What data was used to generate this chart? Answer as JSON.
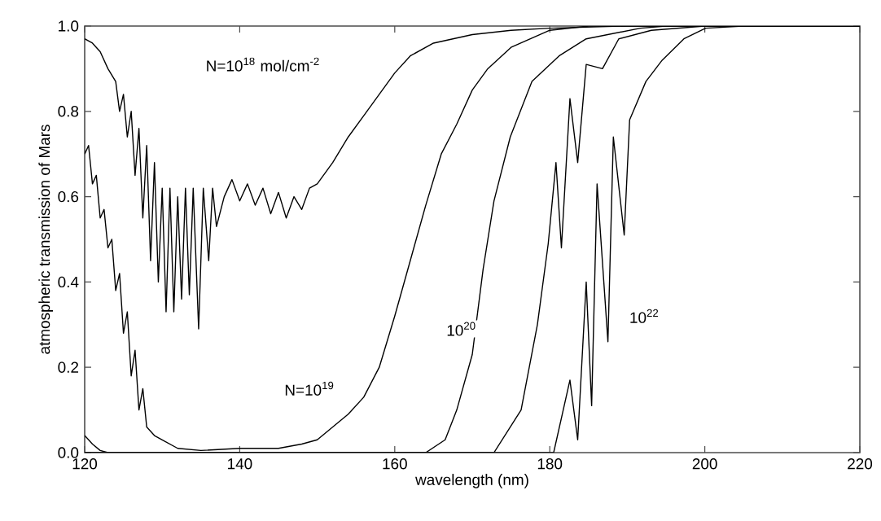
{
  "chart_data": {
    "type": "line",
    "xlabel": "wavelength (nm)",
    "ylabel": "atmospheric transmission of Mars",
    "xlim": [
      120,
      220
    ],
    "xticks": [
      120,
      140,
      160,
      180,
      200,
      220
    ],
    "ylim": [
      0,
      1
    ],
    "yticks": [
      {
        "value": 0,
        "label": "0.0"
      },
      {
        "value": 0.2,
        "label": "0.2"
      },
      {
        "value": 0.4,
        "label": "0.4"
      },
      {
        "value": 0.6,
        "label": "0.6"
      },
      {
        "value": 0.8,
        "label": "0.8"
      },
      {
        "value": 1,
        "label": "1.0"
      }
    ],
    "marker": "none",
    "line_style": "solid",
    "series": [
      {
        "color": "#000000",
        "x": [
          120,
          121,
          122,
          123,
          124,
          124.5,
          125,
          125.5,
          126,
          126.5,
          127,
          127.5,
          128,
          128.5,
          129,
          129.5,
          130,
          130.5,
          131,
          131.5,
          132,
          132.5,
          133,
          133.5,
          134,
          134.7,
          135.3,
          136,
          136.5,
          137,
          138,
          139,
          140,
          141,
          142,
          143,
          144,
          145,
          146,
          147,
          148,
          149,
          150,
          152,
          154,
          156,
          158,
          160,
          162,
          165,
          170,
          175,
          180,
          190,
          200,
          220
        ],
        "values": [
          0.97,
          0.96,
          0.94,
          0.9,
          0.87,
          0.8,
          0.84,
          0.74,
          0.8,
          0.65,
          0.76,
          0.55,
          0.72,
          0.45,
          0.68,
          0.4,
          0.62,
          0.33,
          0.62,
          0.33,
          0.6,
          0.36,
          0.62,
          0.37,
          0.62,
          0.29,
          0.62,
          0.45,
          0.62,
          0.53,
          0.6,
          0.64,
          0.59,
          0.63,
          0.58,
          0.62,
          0.56,
          0.61,
          0.55,
          0.6,
          0.57,
          0.62,
          0.63,
          0.68,
          0.74,
          0.79,
          0.84,
          0.89,
          0.93,
          0.96,
          0.98,
          0.99,
          0.995,
          1,
          1,
          1
        ]
      },
      {
        "color": "#000000",
        "x": [
          120,
          120.5,
          121,
          121.5,
          122,
          122.5,
          123,
          123.5,
          124,
          124.5,
          125,
          125.5,
          126,
          126.5,
          127,
          127.5,
          128,
          129,
          130,
          132,
          135,
          140,
          145,
          148,
          150,
          152,
          154,
          156,
          158,
          160,
          162,
          164,
          166,
          168,
          170,
          172,
          175,
          180,
          185,
          220
        ],
        "values": [
          0.7,
          0.72,
          0.63,
          0.65,
          0.55,
          0.57,
          0.48,
          0.5,
          0.38,
          0.42,
          0.28,
          0.33,
          0.18,
          0.24,
          0.1,
          0.15,
          0.06,
          0.04,
          0.03,
          0.01,
          0.005,
          0.01,
          0.01,
          0.02,
          0.03,
          0.06,
          0.09,
          0.13,
          0.2,
          0.32,
          0.45,
          0.58,
          0.7,
          0.77,
          0.85,
          0.9,
          0.95,
          0.99,
          1,
          1
        ]
      },
      {
        "color": "#000000",
        "x": [
          120,
          121,
          122,
          123,
          164,
          166.5,
          168,
          170,
          171.4,
          172.8,
          174.9,
          177.7,
          181.2,
          184.7,
          191.7,
          195,
          220
        ],
        "values": [
          0.04,
          0.02,
          0.005,
          0,
          0,
          0.03,
          0.1,
          0.23,
          0.43,
          0.59,
          0.74,
          0.87,
          0.93,
          0.97,
          0.995,
          1,
          1
        ]
      },
      {
        "color": "#000000",
        "x": [
          120,
          172.8,
          176.3,
          178.4,
          179.8,
          180.8,
          181.5,
          182.6,
          183.6,
          184.7,
          186.8,
          188.9,
          193.1,
          200,
          220
        ],
        "values": [
          0,
          0,
          0.1,
          0.3,
          0.49,
          0.68,
          0.48,
          0.83,
          0.68,
          0.91,
          0.9,
          0.97,
          0.99,
          1,
          1
        ]
      },
      {
        "color": "#000000",
        "x": [
          120,
          180.5,
          182.6,
          183.6,
          184.7,
          185.4,
          186.1,
          187.5,
          188.2,
          189.6,
          190.3,
          192.4,
          194.5,
          197.3,
          200.1,
          205,
          220
        ],
        "values": [
          0,
          0,
          0.17,
          0.03,
          0.4,
          0.11,
          0.63,
          0.26,
          0.74,
          0.51,
          0.78,
          0.87,
          0.92,
          0.97,
          0.995,
          1,
          1
        ]
      }
    ],
    "annotations": [
      "N=10$^{18}$ mol/cm$^{-2}$",
      {
        "text": "N=10$^{19}$",
        "x": 149,
        "y": 0.15
      },
      {
        "text": "10$^{20}$",
        "x": 168.6,
        "y": 0.29
      },
      {
        "text": "10$^{22}$",
        "x": 192.2,
        "y": 0.32
      }
    ]
  }
}
